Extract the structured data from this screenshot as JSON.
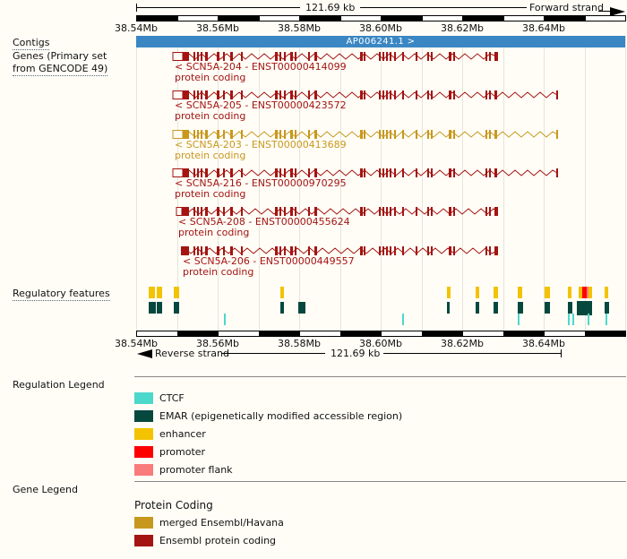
{
  "colors": {
    "background": "#fffdf6",
    "contig": "#3a87c4",
    "gene_red": "#a31412",
    "gene_gold": "#c8981e",
    "ctcf": "#4dd8cc",
    "emar": "#07483e",
    "enhancer": "#f3c300",
    "promoter": "#ff0000",
    "promoter_flank": "#f97b7b",
    "grid": "#e5e5dd"
  },
  "ruler_top": {
    "scale_label": "121.69 kb",
    "strand_label": "Forward strand",
    "ticks": [
      "38.54Mb",
      "38.56Mb",
      "38.58Mb",
      "38.60Mb",
      "38.62Mb",
      "38.64Mb"
    ]
  },
  "ruler_bottom": {
    "scale_label": "121.69 kb",
    "strand_label": "Reverse strand",
    "ticks": [
      "38.54Mb",
      "38.56Mb",
      "38.58Mb",
      "38.60Mb",
      "38.62Mb",
      "38.64Mb"
    ]
  },
  "sidebar": {
    "contigs_label": "Contigs",
    "genes_label_line1": "Genes (Primary set",
    "genes_label_line2": "from GENCODE 49)",
    "regulatory_label": "Regulatory features",
    "regulation_legend_label": "Regulation Legend",
    "gene_legend_label": "Gene Legend"
  },
  "contig": {
    "name": "AP006241.1 >"
  },
  "exon_pattern": [
    [
      204,
      7
    ],
    [
      216,
      2
    ],
    [
      220,
      2
    ],
    [
      224,
      2
    ],
    [
      229,
      3
    ],
    [
      242,
      3
    ],
    [
      249,
      2
    ],
    [
      257,
      3
    ],
    [
      269,
      2
    ],
    [
      307,
      3
    ],
    [
      312,
      2
    ],
    [
      317,
      2
    ],
    [
      324,
      3
    ],
    [
      329,
      2
    ],
    [
      344,
      2
    ],
    [
      351,
      3
    ],
    [
      402,
      3
    ],
    [
      406,
      2
    ],
    [
      423,
      2
    ],
    [
      427,
      2
    ],
    [
      431,
      2
    ],
    [
      435,
      2
    ],
    [
      440,
      2
    ],
    [
      449,
      2
    ],
    [
      464,
      2
    ],
    [
      477,
      2
    ],
    [
      481,
      2
    ],
    [
      501,
      3
    ],
    [
      506,
      2
    ],
    [
      542,
      2
    ],
    [
      546,
      2
    ],
    [
      552,
      3
    ]
  ],
  "transcripts": [
    {
      "label": "< SCN5A-204 - ENST00000414099",
      "biotype": "protein coding",
      "color": "gene_red",
      "start": 193,
      "end": 556,
      "utr": [
        193,
        11
      ]
    },
    {
      "label": "< SCN5A-205 - ENST00000423572",
      "biotype": "protein coding",
      "color": "gene_red",
      "start": 193,
      "end": 623,
      "utr": [
        193,
        11
      ]
    },
    {
      "label": "< SCN5A-203 - ENST00000413689",
      "biotype": "protein coding",
      "color": "gene_gold",
      "start": 193,
      "end": 623,
      "utr": [
        193,
        11
      ]
    },
    {
      "label": "< SCN5A-216 - ENST00000970295",
      "biotype": "protein coding",
      "color": "gene_red",
      "start": 193,
      "end": 623,
      "utr": [
        193,
        11
      ]
    },
    {
      "label": "< SCN5A-208 - ENST00000455624",
      "biotype": "protein coding",
      "color": "gene_red",
      "start": 197,
      "end": 556,
      "utr": [
        197,
        6
      ],
      "first_exon": [
        203,
        8
      ]
    },
    {
      "label": "< SCN5A-206 - ENST00000449557",
      "biotype": "protein coding",
      "color": "gene_red",
      "start": 202,
      "end": 556,
      "utr": null,
      "first_exon": [
        202,
        9
      ]
    }
  ],
  "regulatory": {
    "enhancers": [
      [
        166,
        7
      ],
      [
        175,
        6
      ],
      [
        194,
        6
      ],
      [
        313,
        4
      ],
      [
        499,
        4
      ],
      [
        531,
        4
      ],
      [
        551,
        5
      ],
      [
        578,
        5
      ],
      [
        608,
        6
      ],
      [
        634,
        4
      ],
      [
        646,
        4
      ],
      [
        656,
        5
      ],
      [
        675,
        4
      ]
    ],
    "promoters": [
      [
        650,
        5
      ]
    ],
    "promoter_flanks": [
      [
        655,
        2
      ]
    ],
    "emar": [
      [
        166,
        8
      ],
      [
        175,
        6
      ],
      [
        194,
        6
      ],
      [
        313,
        4
      ],
      [
        333,
        8
      ],
      [
        499,
        3
      ],
      [
        531,
        4
      ],
      [
        551,
        5
      ],
      [
        578,
        6
      ],
      [
        608,
        6
      ],
      [
        634,
        5
      ],
      [
        644,
        17
      ],
      [
        675,
        5
      ]
    ],
    "ctcf": [
      [
        250,
        2
      ],
      [
        449,
        2
      ],
      [
        578,
        2
      ],
      [
        634,
        2
      ],
      [
        639,
        2
      ],
      [
        656,
        2
      ],
      [
        676,
        2
      ]
    ]
  },
  "regulation_legend": [
    {
      "label": "CTCF",
      "color": "ctcf"
    },
    {
      "label": "EMAR (epigenetically modified accessible region)",
      "color": "emar"
    },
    {
      "label": "enhancer",
      "color": "enhancer"
    },
    {
      "label": "promoter",
      "color": "promoter"
    },
    {
      "label": "promoter flank",
      "color": "promoter_flank"
    }
  ],
  "gene_legend": {
    "header": "Protein Coding",
    "items": [
      {
        "label": "merged Ensembl/Havana",
        "color": "gene_gold"
      },
      {
        "label": "Ensembl protein coding",
        "color": "gene_red"
      }
    ]
  }
}
